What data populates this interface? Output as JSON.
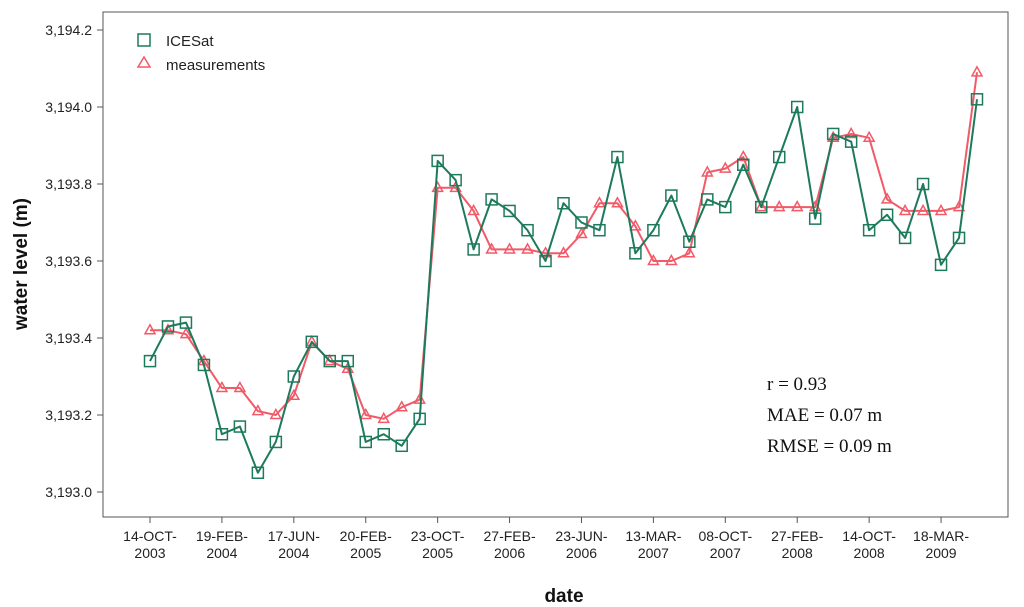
{
  "chart_data": {
    "type": "line",
    "xlabel": "date",
    "ylabel": "water level (m)",
    "ylim": [
      3193.0,
      3194.2
    ],
    "yticks": [
      "3,193.0",
      "3,193.2",
      "3,193.4",
      "3,193.6",
      "3,193.8",
      "3,194.0",
      "3,194.2"
    ],
    "yticks_values": [
      3193.0,
      3193.2,
      3193.4,
      3193.6,
      3193.8,
      3194.0,
      3194.2
    ],
    "x_count": 47,
    "xticks": [
      {
        "index": 0,
        "line1": "14-OCT-",
        "line2": "2003"
      },
      {
        "index": 4,
        "line1": "19-FEB-",
        "line2": "2004"
      },
      {
        "index": 8,
        "line1": "17-JUN-",
        "line2": "2004"
      },
      {
        "index": 12,
        "line1": "20-FEB-",
        "line2": "2005"
      },
      {
        "index": 16,
        "line1": "23-OCT-",
        "line2": "2005"
      },
      {
        "index": 20,
        "line1": "27-FEB-",
        "line2": "2006"
      },
      {
        "index": 24,
        "line1": "23-JUN-",
        "line2": "2006"
      },
      {
        "index": 28,
        "line1": "13-MAR-",
        "line2": "2007"
      },
      {
        "index": 32,
        "line1": "08-OCT-",
        "line2": "2007"
      },
      {
        "index": 36,
        "line1": "27-FEB-",
        "line2": "2008"
      },
      {
        "index": 40,
        "line1": "14-OCT-",
        "line2": "2008"
      },
      {
        "index": 44,
        "line1": "18-MAR-",
        "line2": "2009"
      }
    ],
    "series": [
      {
        "name": "ICESat",
        "color": "#1d7a5c",
        "marker": "square",
        "values": [
          3193.34,
          3193.43,
          3193.44,
          3193.33,
          3193.15,
          3193.17,
          3193.05,
          3193.13,
          3193.3,
          3193.39,
          3193.34,
          3193.34,
          3193.13,
          3193.15,
          3193.12,
          3193.19,
          3193.86,
          3193.81,
          3193.63,
          3193.76,
          3193.73,
          3193.68,
          3193.6,
          3193.75,
          3193.7,
          3193.68,
          3193.87,
          3193.62,
          3193.68,
          3193.77,
          3193.65,
          3193.76,
          3193.74,
          3193.85,
          3193.74,
          3193.87,
          3194.0,
          3193.71,
          3193.93,
          3193.91,
          3193.68,
          3193.72,
          3193.66,
          3193.8,
          3193.59,
          3193.66,
          3194.02
        ]
      },
      {
        "name": "measurements",
        "color": "#f25a68",
        "marker": "triangle",
        "values": [
          3193.42,
          3193.42,
          3193.41,
          3193.34,
          3193.27,
          3193.27,
          3193.21,
          3193.2,
          3193.25,
          3193.39,
          3193.34,
          3193.32,
          3193.2,
          3193.19,
          3193.22,
          3193.24,
          3193.79,
          3193.79,
          3193.73,
          3193.63,
          3193.63,
          3193.63,
          3193.62,
          3193.62,
          3193.67,
          3193.75,
          3193.75,
          3193.69,
          3193.6,
          3193.6,
          3193.62,
          3193.83,
          3193.84,
          3193.87,
          3193.74,
          3193.74,
          3193.74,
          3193.74,
          3193.92,
          3193.93,
          3193.92,
          3193.76,
          3193.73,
          3193.73,
          3193.73,
          3193.74,
          3194.09
        ]
      }
    ],
    "legend_position": "top-left",
    "annotations": {
      "r": "r = 0.93",
      "mae": "MAE = 0.07 m",
      "rmse": "RMSE = 0.09 m"
    },
    "grid": false
  }
}
